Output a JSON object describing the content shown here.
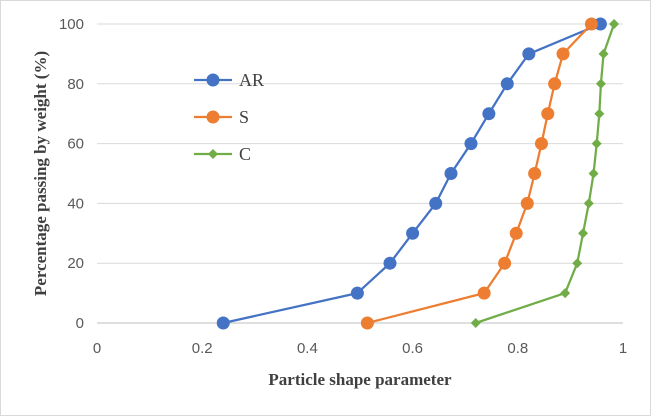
{
  "chart_data": {
    "type": "line",
    "title": "",
    "xlabel": "Particle shape parameter",
    "ylabel": "Percentage passing by weight (%)",
    "xlim": [
      0,
      1
    ],
    "ylim": [
      0,
      100
    ],
    "x_ticks": [
      "0",
      "0.2",
      "0.4",
      "0.6",
      "0.8",
      "1"
    ],
    "y_ticks": [
      "0",
      "20",
      "40",
      "60",
      "80",
      "100"
    ],
    "grid": "horizontal",
    "legend_position": "left-upper inside",
    "series": [
      {
        "name": "AR",
        "color": "#4472c4",
        "marker": "circle",
        "points": [
          [
            0.24,
            0
          ],
          [
            0.495,
            10
          ],
          [
            0.557,
            20
          ],
          [
            0.6,
            30
          ],
          [
            0.644,
            40
          ],
          [
            0.673,
            50
          ],
          [
            0.711,
            60
          ],
          [
            0.745,
            70
          ],
          [
            0.78,
            80
          ],
          [
            0.821,
            90
          ],
          [
            0.957,
            100
          ]
        ]
      },
      {
        "name": "S",
        "color": "#ed7d31",
        "marker": "circle",
        "points": [
          [
            0.514,
            0
          ],
          [
            0.736,
            10
          ],
          [
            0.775,
            20
          ],
          [
            0.797,
            30
          ],
          [
            0.818,
            40
          ],
          [
            0.832,
            50
          ],
          [
            0.845,
            60
          ],
          [
            0.857,
            70
          ],
          [
            0.87,
            80
          ],
          [
            0.886,
            90
          ],
          [
            0.94,
            100
          ]
        ]
      },
      {
        "name": "C",
        "color": "#70ad47",
        "marker": "diamond",
        "points": [
          [
            0.72,
            0
          ],
          [
            0.89,
            10
          ],
          [
            0.913,
            20
          ],
          [
            0.924,
            30
          ],
          [
            0.935,
            40
          ],
          [
            0.944,
            50
          ],
          [
            0.95,
            60
          ],
          [
            0.955,
            70
          ],
          [
            0.958,
            80
          ],
          [
            0.963,
            90
          ],
          [
            0.983,
            100
          ]
        ]
      }
    ]
  }
}
